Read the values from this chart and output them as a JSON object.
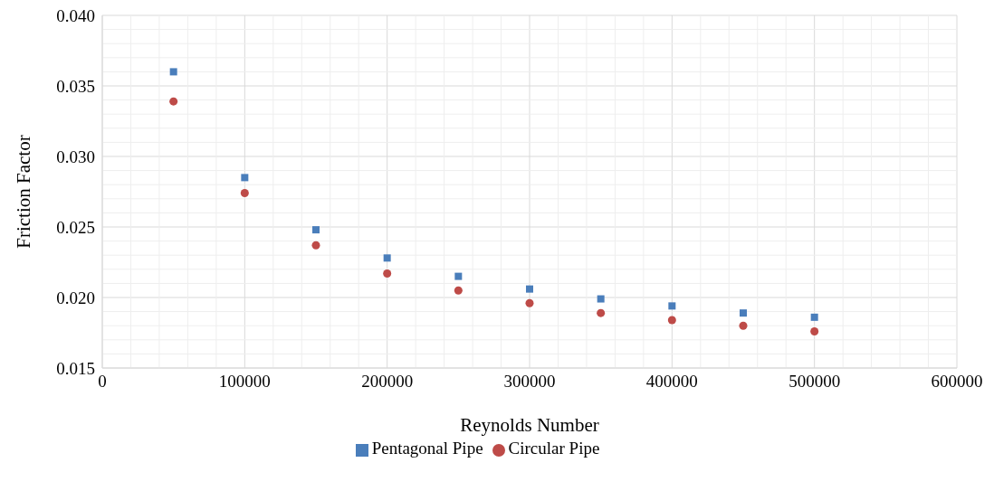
{
  "chart_data": {
    "type": "scatter",
    "xlabel": "Reynolds Number",
    "ylabel": "Friction Factor",
    "x": [
      50000,
      100000,
      150000,
      200000,
      250000,
      300000,
      350000,
      400000,
      450000,
      500000
    ],
    "series": [
      {
        "name": "Pentagonal Pipe",
        "color": "#4a7ebb",
        "marker": "square",
        "values": [
          0.036,
          0.0285,
          0.0248,
          0.0228,
          0.0215,
          0.0206,
          0.0199,
          0.0194,
          0.0189,
          0.0186
        ]
      },
      {
        "name": "Circular Pipe",
        "color": "#be4b48",
        "marker": "circle",
        "values": [
          0.0339,
          0.0274,
          0.0237,
          0.0217,
          0.0205,
          0.0196,
          0.0189,
          0.0184,
          0.018,
          0.0176
        ]
      }
    ],
    "xlim": [
      0,
      600000
    ],
    "xticks": [
      0,
      100000,
      200000,
      300000,
      400000,
      500000,
      600000
    ],
    "ylim": [
      0.015,
      0.04
    ],
    "yticks": [
      0.015,
      {
        "value": 0.02,
        "label": "0.020"
      },
      0.025,
      {
        "value": 0.03,
        "label": "0.030"
      },
      0.035,
      {
        "value": 0.04,
        "label": "0.040"
      }
    ],
    "grid": true,
    "legend": "bottom"
  }
}
